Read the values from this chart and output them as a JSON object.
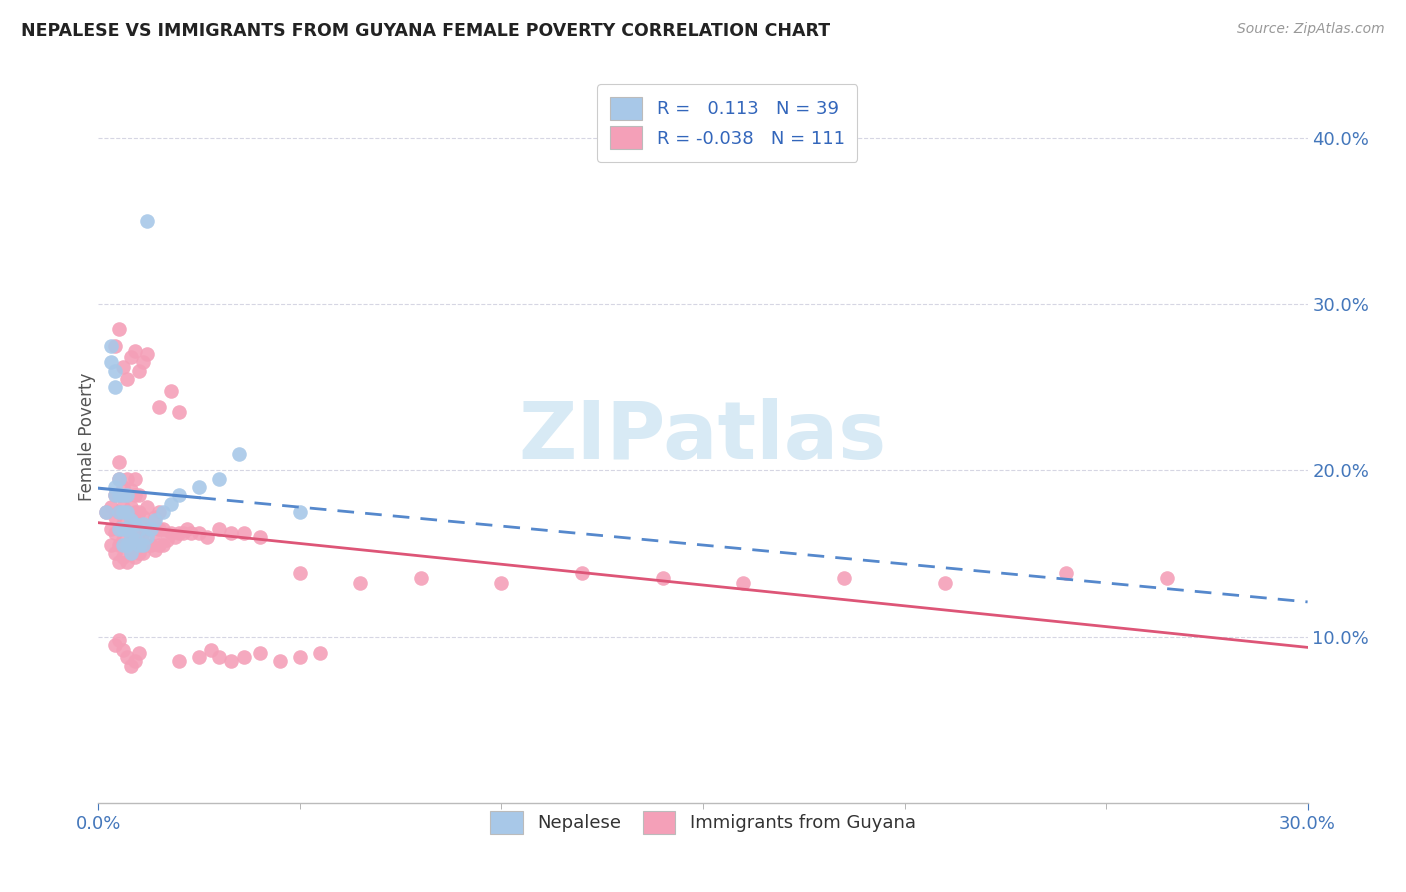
{
  "title": "NEPALESE VS IMMIGRANTS FROM GUYANA FEMALE POVERTY CORRELATION CHART",
  "source": "Source: ZipAtlas.com",
  "ylabel": "Female Poverty",
  "xlim": [
    0.0,
    0.3
  ],
  "ylim": [
    0.0,
    0.44
  ],
  "legend_label1": "Nepalese",
  "legend_label2": "Immigrants from Guyana",
  "R1": 0.113,
  "N1": 39,
  "R2": -0.038,
  "N2": 111,
  "color1": "#a8c8e8",
  "color2": "#f4a0b8",
  "line1_color": "#5588cc",
  "line2_color": "#dd5577",
  "watermark_color": "#d8eaf5",
  "nepalese_x": [
    0.002,
    0.003,
    0.003,
    0.004,
    0.004,
    0.004,
    0.004,
    0.005,
    0.005,
    0.005,
    0.005,
    0.006,
    0.006,
    0.006,
    0.006,
    0.007,
    0.007,
    0.007,
    0.007,
    0.008,
    0.008,
    0.008,
    0.009,
    0.009,
    0.01,
    0.01,
    0.011,
    0.011,
    0.012,
    0.013,
    0.014,
    0.016,
    0.018,
    0.02,
    0.025,
    0.03,
    0.035,
    0.05,
    0.012
  ],
  "nepalese_y": [
    0.175,
    0.265,
    0.275,
    0.25,
    0.26,
    0.185,
    0.19,
    0.165,
    0.175,
    0.185,
    0.195,
    0.155,
    0.165,
    0.175,
    0.185,
    0.155,
    0.165,
    0.175,
    0.185,
    0.15,
    0.16,
    0.17,
    0.158,
    0.168,
    0.155,
    0.165,
    0.155,
    0.168,
    0.16,
    0.165,
    0.17,
    0.175,
    0.18,
    0.185,
    0.19,
    0.195,
    0.21,
    0.175,
    0.35
  ],
  "guyana_x": [
    0.002,
    0.003,
    0.003,
    0.003,
    0.004,
    0.004,
    0.004,
    0.004,
    0.005,
    0.005,
    0.005,
    0.005,
    0.005,
    0.005,
    0.005,
    0.006,
    0.006,
    0.006,
    0.006,
    0.006,
    0.007,
    0.007,
    0.007,
    0.007,
    0.007,
    0.007,
    0.008,
    0.008,
    0.008,
    0.008,
    0.008,
    0.009,
    0.009,
    0.009,
    0.009,
    0.009,
    0.009,
    0.01,
    0.01,
    0.01,
    0.01,
    0.01,
    0.011,
    0.011,
    0.011,
    0.012,
    0.012,
    0.012,
    0.013,
    0.013,
    0.014,
    0.014,
    0.014,
    0.015,
    0.015,
    0.015,
    0.016,
    0.016,
    0.017,
    0.018,
    0.019,
    0.02,
    0.021,
    0.022,
    0.023,
    0.025,
    0.027,
    0.03,
    0.033,
    0.036,
    0.04,
    0.004,
    0.005,
    0.006,
    0.007,
    0.008,
    0.009,
    0.01,
    0.011,
    0.012,
    0.015,
    0.018,
    0.02,
    0.004,
    0.005,
    0.006,
    0.007,
    0.008,
    0.009,
    0.01,
    0.05,
    0.065,
    0.08,
    0.1,
    0.12,
    0.14,
    0.16,
    0.185,
    0.21,
    0.24,
    0.265,
    0.02,
    0.025,
    0.028,
    0.03,
    0.033,
    0.036,
    0.04,
    0.045,
    0.05,
    0.055
  ],
  "guyana_y": [
    0.175,
    0.155,
    0.165,
    0.178,
    0.15,
    0.162,
    0.172,
    0.185,
    0.145,
    0.155,
    0.165,
    0.175,
    0.185,
    0.195,
    0.205,
    0.148,
    0.158,
    0.168,
    0.178,
    0.19,
    0.145,
    0.155,
    0.165,
    0.175,
    0.185,
    0.195,
    0.15,
    0.158,
    0.168,
    0.178,
    0.188,
    0.148,
    0.158,
    0.165,
    0.175,
    0.185,
    0.195,
    0.15,
    0.158,
    0.165,
    0.175,
    0.185,
    0.15,
    0.162,
    0.172,
    0.155,
    0.165,
    0.178,
    0.155,
    0.165,
    0.152,
    0.162,
    0.172,
    0.155,
    0.165,
    0.175,
    0.155,
    0.165,
    0.158,
    0.162,
    0.16,
    0.162,
    0.162,
    0.165,
    0.162,
    0.162,
    0.16,
    0.165,
    0.162,
    0.162,
    0.16,
    0.275,
    0.285,
    0.262,
    0.255,
    0.268,
    0.272,
    0.26,
    0.265,
    0.27,
    0.238,
    0.248,
    0.235,
    0.095,
    0.098,
    0.092,
    0.088,
    0.082,
    0.085,
    0.09,
    0.138,
    0.132,
    0.135,
    0.132,
    0.138,
    0.135,
    0.132,
    0.135,
    0.132,
    0.138,
    0.135,
    0.085,
    0.088,
    0.092,
    0.088,
    0.085,
    0.088,
    0.09,
    0.085,
    0.088,
    0.09
  ]
}
